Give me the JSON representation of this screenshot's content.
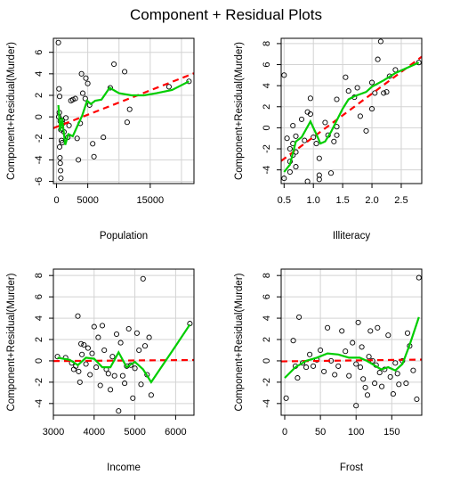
{
  "title": "Component + Residual Plots",
  "colors": {
    "fit": "#ff0000",
    "smooth": "#00cd00",
    "grid": "#d3d3d3",
    "points": "#000000"
  },
  "chart_data": [
    {
      "type": "scatter",
      "xlabel": "Population",
      "ylabel": "Component+Residual(Murder)",
      "xlim": [
        -500,
        22000
      ],
      "ylim": [
        -6.2,
        7.3
      ],
      "xticks": [
        0,
        5000,
        15000
      ],
      "xgrid": [
        0,
        5000,
        10000,
        15000,
        20000
      ],
      "yticks": [
        -6,
        -4,
        -2,
        0,
        2,
        4,
        6
      ],
      "points": [
        [
          300,
          6.9
        ],
        [
          400,
          2.6
        ],
        [
          500,
          1.9
        ],
        [
          450,
          0.4
        ],
        [
          350,
          0.0
        ],
        [
          600,
          -0.4
        ],
        [
          700,
          -1.2
        ],
        [
          500,
          -2.8
        ],
        [
          800,
          -2.2
        ],
        [
          900,
          -2.4
        ],
        [
          550,
          -3.8
        ],
        [
          600,
          -4.3
        ],
        [
          650,
          -5.0
        ],
        [
          700,
          -5.7
        ],
        [
          900,
          -0.3
        ],
        [
          1000,
          -0.6
        ],
        [
          1200,
          -1.4
        ],
        [
          1500,
          -0.1
        ],
        [
          1800,
          -1.9
        ],
        [
          2000,
          -0.8
        ],
        [
          2300,
          1.5
        ],
        [
          2600,
          1.6
        ],
        [
          3000,
          1.7
        ],
        [
          3300,
          -2.0
        ],
        [
          3500,
          -4.0
        ],
        [
          4000,
          4.0
        ],
        [
          3800,
          -0.6
        ],
        [
          4200,
          2.2
        ],
        [
          4600,
          1.7
        ],
        [
          4700,
          3.6
        ],
        [
          5000,
          3.1
        ],
        [
          5300,
          1.1
        ],
        [
          5800,
          -2.5
        ],
        [
          6000,
          -3.7
        ],
        [
          7500,
          -1.9
        ],
        [
          8600,
          2.7
        ],
        [
          9200,
          4.9
        ],
        [
          10900,
          4.2
        ],
        [
          11300,
          -0.5
        ],
        [
          11700,
          0.7
        ],
        [
          18000,
          2.8
        ],
        [
          21200,
          3.3
        ]
      ],
      "fit_line": [
        [
          -500,
          -1.05
        ],
        [
          22000,
          4.05
        ]
      ],
      "smooth": [
        [
          300,
          1.1
        ],
        [
          600,
          -1.3
        ],
        [
          900,
          -0.1
        ],
        [
          1400,
          -2.6
        ],
        [
          1900,
          -1.6
        ],
        [
          2600,
          -1.8
        ],
        [
          3300,
          -0.9
        ],
        [
          4100,
          0.1
        ],
        [
          4900,
          1.5
        ],
        [
          5500,
          1.2
        ],
        [
          6200,
          1.5
        ],
        [
          7200,
          1.6
        ],
        [
          8500,
          2.7
        ],
        [
          10000,
          2.2
        ],
        [
          12000,
          2.0
        ],
        [
          14000,
          2.0
        ],
        [
          16000,
          2.2
        ],
        [
          18500,
          2.5
        ],
        [
          21200,
          3.3
        ]
      ]
    },
    {
      "type": "scatter",
      "xlabel": "Illiteracy",
      "ylabel": "Component+Residual(Murder)",
      "xlim": [
        0.45,
        2.85
      ],
      "ylim": [
        -5.3,
        8.5
      ],
      "xticks": [
        0.5,
        1.0,
        1.5,
        2.0,
        2.5
      ],
      "xtick_labels": [
        "0.5",
        "1.0",
        "1.5",
        "2.0",
        "2.5"
      ],
      "yticks": [
        -4,
        -2,
        0,
        2,
        4,
        6,
        8
      ],
      "points": [
        [
          0.5,
          -4.8
        ],
        [
          0.5,
          5.0
        ],
        [
          0.55,
          -1.0
        ],
        [
          0.6,
          -2.0
        ],
        [
          0.6,
          -3.2
        ],
        [
          0.6,
          -4.2
        ],
        [
          0.65,
          0.2
        ],
        [
          0.65,
          -1.5
        ],
        [
          0.65,
          -2.6
        ],
        [
          0.7,
          -0.8
        ],
        [
          0.7,
          -2.3
        ],
        [
          0.7,
          -3.7
        ],
        [
          0.8,
          0.8
        ],
        [
          0.85,
          -1.2
        ],
        [
          0.9,
          1.5
        ],
        [
          0.9,
          -5.1
        ],
        [
          0.95,
          1.3
        ],
        [
          0.95,
          2.8
        ],
        [
          1.0,
          -0.9
        ],
        [
          1.05,
          -1.5
        ],
        [
          1.1,
          -2.9
        ],
        [
          1.1,
          -4.5
        ],
        [
          1.1,
          -4.9
        ],
        [
          1.2,
          0.5
        ],
        [
          1.25,
          -0.7
        ],
        [
          1.3,
          -4.3
        ],
        [
          1.35,
          -1.3
        ],
        [
          1.4,
          -0.7
        ],
        [
          1.4,
          2.7
        ],
        [
          1.4,
          0.1
        ],
        [
          1.55,
          4.8
        ],
        [
          1.6,
          3.5
        ],
        [
          1.7,
          2.9
        ],
        [
          1.75,
          3.8
        ],
        [
          1.8,
          1.1
        ],
        [
          1.9,
          -0.3
        ],
        [
          2.0,
          1.8
        ],
        [
          2.0,
          4.3
        ],
        [
          2.05,
          3.3
        ],
        [
          2.1,
          6.5
        ],
        [
          2.15,
          8.2
        ],
        [
          2.2,
          3.3
        ],
        [
          2.25,
          3.4
        ],
        [
          2.3,
          4.9
        ],
        [
          2.4,
          5.5
        ],
        [
          2.8,
          6.2
        ]
      ],
      "fit_line": [
        [
          0.45,
          -3.15
        ],
        [
          2.85,
          6.75
        ]
      ],
      "smooth": [
        [
          0.5,
          -4.2
        ],
        [
          0.6,
          -3.5
        ],
        [
          0.7,
          -1.3
        ],
        [
          0.8,
          -0.9
        ],
        [
          0.95,
          0.6
        ],
        [
          1.05,
          -0.6
        ],
        [
          1.12,
          -1.5
        ],
        [
          1.2,
          -1.3
        ],
        [
          1.3,
          -0.4
        ],
        [
          1.4,
          0.7
        ],
        [
          1.5,
          1.8
        ],
        [
          1.6,
          2.7
        ],
        [
          1.7,
          3.0
        ],
        [
          1.8,
          3.2
        ],
        [
          1.9,
          3.4
        ],
        [
          2.0,
          3.9
        ],
        [
          2.2,
          4.5
        ],
        [
          2.4,
          5.2
        ],
        [
          2.8,
          6.2
        ]
      ]
    },
    {
      "type": "scatter",
      "xlabel": "Income",
      "ylabel": "Component+Residual(Murder)",
      "xlim": [
        3000,
        6450
      ],
      "ylim": [
        -5.1,
        8.6
      ],
      "xticks": [
        3000,
        4000,
        5000,
        6000
      ],
      "yticks": [
        -4,
        -2,
        0,
        2,
        4,
        6,
        8
      ],
      "points": [
        [
          3100,
          0.4
        ],
        [
          3300,
          0.3
        ],
        [
          3450,
          -0.2
        ],
        [
          3500,
          -0.8
        ],
        [
          3550,
          -0.5
        ],
        [
          3600,
          4.2
        ],
        [
          3620,
          -1.0
        ],
        [
          3650,
          -2.0
        ],
        [
          3680,
          1.6
        ],
        [
          3700,
          0.6
        ],
        [
          3750,
          1.5
        ],
        [
          3800,
          -0.3
        ],
        [
          3850,
          1.2
        ],
        [
          3900,
          -1.3
        ],
        [
          3950,
          0.7
        ],
        [
          4000,
          3.2
        ],
        [
          4050,
          -0.6
        ],
        [
          4100,
          2.2
        ],
        [
          4150,
          -2.3
        ],
        [
          4200,
          3.3
        ],
        [
          4250,
          1.0
        ],
        [
          4300,
          -0.8
        ],
        [
          4350,
          -1.2
        ],
        [
          4400,
          -2.7
        ],
        [
          4450,
          0.4
        ],
        [
          4500,
          -1.4
        ],
        [
          4550,
          2.5
        ],
        [
          4600,
          -4.7
        ],
        [
          4650,
          1.7
        ],
        [
          4700,
          -1.4
        ],
        [
          4750,
          -2.1
        ],
        [
          4800,
          -0.5
        ],
        [
          4850,
          3.0
        ],
        [
          4900,
          -0.4
        ],
        [
          4950,
          -3.5
        ],
        [
          5000,
          -0.7
        ],
        [
          5050,
          2.6
        ],
        [
          5100,
          1.0
        ],
        [
          5150,
          -2.2
        ],
        [
          5200,
          7.7
        ],
        [
          5250,
          1.4
        ],
        [
          5300,
          -1.3
        ],
        [
          5350,
          2.2
        ],
        [
          5400,
          -3.2
        ],
        [
          6350,
          3.5
        ]
      ],
      "fit_line": [
        [
          3000,
          -0.02
        ],
        [
          6450,
          0.08
        ]
      ],
      "smooth": [
        [
          3100,
          0.3
        ],
        [
          3400,
          0.1
        ],
        [
          3600,
          -0.4
        ],
        [
          3800,
          0.3
        ],
        [
          4000,
          0.2
        ],
        [
          4200,
          -0.6
        ],
        [
          4400,
          -0.6
        ],
        [
          4600,
          0.8
        ],
        [
          4800,
          -0.6
        ],
        [
          5000,
          -0.1
        ],
        [
          5200,
          -0.8
        ],
        [
          5400,
          -2.0
        ],
        [
          5700,
          -0.3
        ],
        [
          6000,
          1.4
        ],
        [
          6350,
          3.4
        ]
      ]
    },
    {
      "type": "scatter",
      "xlabel": "Frost",
      "ylabel": "Component+Residual(Murder)",
      "xlim": [
        -5,
        192
      ],
      "ylim": [
        -5.1,
        8.6
      ],
      "xticks": [
        0,
        50,
        100,
        150
      ],
      "yticks": [
        -4,
        -2,
        0,
        2,
        4,
        6,
        8
      ],
      "points": [
        [
          2,
          -3.5
        ],
        [
          12,
          1.9
        ],
        [
          15,
          -0.5
        ],
        [
          18,
          -1.6
        ],
        [
          20,
          4.1
        ],
        [
          25,
          -0.2
        ],
        [
          30,
          -0.6
        ],
        [
          35,
          0.6
        ],
        [
          40,
          -0.5
        ],
        [
          45,
          0.1
        ],
        [
          50,
          1.0
        ],
        [
          55,
          -1.0
        ],
        [
          60,
          3.1
        ],
        [
          65,
          0.0
        ],
        [
          70,
          -1.3
        ],
        [
          75,
          -0.5
        ],
        [
          80,
          2.8
        ],
        [
          85,
          0.9
        ],
        [
          90,
          -1.4
        ],
        [
          95,
          1.7
        ],
        [
          100,
          -0.3
        ],
        [
          100,
          -4.2
        ],
        [
          103,
          3.6
        ],
        [
          106,
          -0.6
        ],
        [
          108,
          1.3
        ],
        [
          110,
          -1.7
        ],
        [
          113,
          -2.5
        ],
        [
          116,
          -3.2
        ],
        [
          118,
          0.4
        ],
        [
          120,
          2.8
        ],
        [
          123,
          0.0
        ],
        [
          126,
          -2.1
        ],
        [
          128,
          -0.4
        ],
        [
          130,
          3.1
        ],
        [
          133,
          -1.1
        ],
        [
          136,
          -2.4
        ],
        [
          140,
          -0.8
        ],
        [
          145,
          2.4
        ],
        [
          148,
          -1.5
        ],
        [
          152,
          -3.1
        ],
        [
          155,
          -0.2
        ],
        [
          158,
          -1.2
        ],
        [
          160,
          -2.2
        ],
        [
          165,
          0.0
        ],
        [
          170,
          -2.1
        ],
        [
          172,
          2.6
        ],
        [
          175,
          1.4
        ],
        [
          180,
          -0.9
        ],
        [
          185,
          -3.6
        ],
        [
          188,
          7.8
        ]
      ],
      "fit_line": [
        [
          -5,
          -0.05
        ],
        [
          192,
          0.12
        ]
      ],
      "smooth": [
        [
          0,
          -1.6
        ],
        [
          15,
          -0.6
        ],
        [
          30,
          0.0
        ],
        [
          45,
          0.3
        ],
        [
          60,
          0.7
        ],
        [
          75,
          0.6
        ],
        [
          90,
          0.3
        ],
        [
          105,
          0.3
        ],
        [
          115,
          0.0
        ],
        [
          125,
          -0.4
        ],
        [
          135,
          -0.8
        ],
        [
          145,
          -0.6
        ],
        [
          155,
          -0.9
        ],
        [
          165,
          -0.3
        ],
        [
          175,
          1.5
        ],
        [
          188,
          4.1
        ]
      ]
    }
  ]
}
